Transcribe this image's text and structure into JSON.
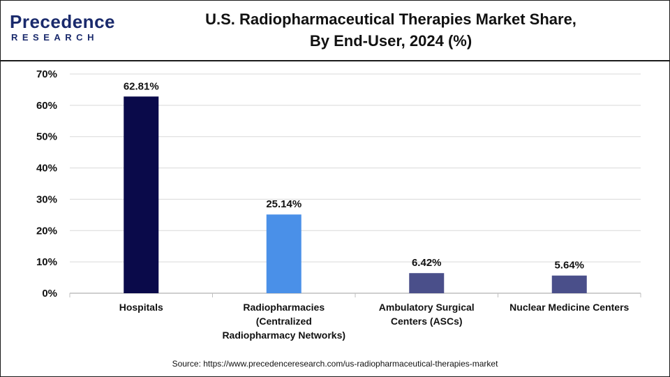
{
  "header": {
    "logo_word": "Precedence",
    "logo_sub": "RESEARCH",
    "title_line1": "U.S. Radiopharmaceutical Therapies Market Share,",
    "title_line2": "By End-User, 2024 (%)"
  },
  "source": "Source: https://www.precedenceresearch.com/us-radiopharmaceutical-therapies-market",
  "colors": {
    "hospitals": "#0a0a4a",
    "radiopharmacies": "#4a90e8",
    "ambulatory": "#4a4f8a",
    "nuclear": "#4a4f8a",
    "grid": "#d9d9d9"
  },
  "chart_data": {
    "type": "bar",
    "categories": [
      [
        "Hospitals"
      ],
      [
        "Radiopharmacies",
        "(Centralized",
        "Radiopharmacy Networks)"
      ],
      [
        "Ambulatory Surgical",
        "Centers (ASCs)"
      ],
      [
        "Nuclear Medicine Centers"
      ]
    ],
    "values": [
      62.81,
      25.14,
      6.42,
      5.64
    ],
    "data_labels": [
      "62.81%",
      "25.14%",
      "6.42%",
      "5.64%"
    ],
    "yticks": [
      "0%",
      "10%",
      "20%",
      "30%",
      "40%",
      "50%",
      "60%",
      "70%"
    ],
    "ylim": [
      0,
      70
    ],
    "grid": true,
    "legend": "none",
    "xlabel": "",
    "ylabel": ""
  }
}
